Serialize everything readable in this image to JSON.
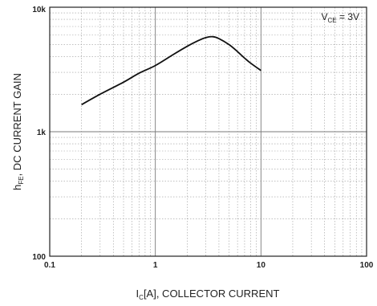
{
  "chart_data": {
    "type": "line",
    "xscale": "log",
    "yscale": "log",
    "xlim": [
      0.1,
      100
    ],
    "ylim": [
      100,
      10000
    ],
    "grid": true,
    "x_ticks": [
      0.1,
      1,
      10,
      100
    ],
    "x_tick_labels": [
      "0.1",
      "1",
      "10",
      "100"
    ],
    "y_ticks": [
      100,
      1000,
      10000
    ],
    "y_tick_labels": [
      "100",
      "1k",
      "10k"
    ],
    "xlabel": {
      "main": "I",
      "sub": "C",
      "rest": "[A], COLLECTOR CURRENT"
    },
    "ylabel": {
      "main": "h",
      "sub": "FE",
      "rest": ", DC CURRENT GAIN"
    },
    "annotation": {
      "main": "V",
      "sub": "CE",
      "rest": " = 3V"
    },
    "series": [
      {
        "x": [
          0.2,
          0.3,
          0.5,
          0.7,
          1.0,
          1.5,
          2.0,
          2.5,
          3.0,
          3.5,
          4.0,
          5.0,
          6.0,
          7.0,
          8.0,
          10.0
        ],
        "y": [
          1650,
          2000,
          2500,
          2950,
          3400,
          4200,
          4850,
          5350,
          5700,
          5800,
          5600,
          5000,
          4400,
          3900,
          3550,
          3100
        ]
      }
    ]
  },
  "colors": {
    "curve": "#111111",
    "major_grid": "#7a7a7a",
    "minor_grid": "#9a9a9a",
    "frame": "#222222"
  }
}
